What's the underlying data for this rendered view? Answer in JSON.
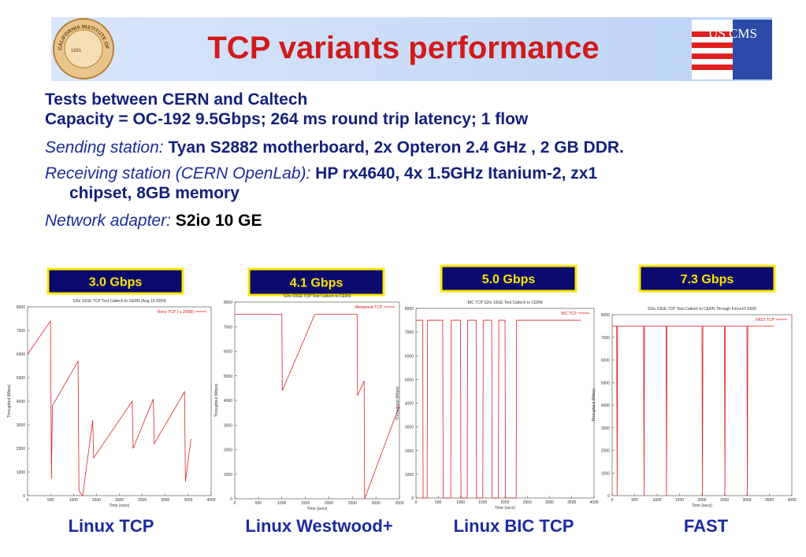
{
  "header": {
    "title": "TCP variants performance",
    "left_logo": {
      "text": "CALIFORNIA INSTITUTE OF TECHNOLOGY",
      "year": "1891"
    },
    "right_logo": "US CMS"
  },
  "text": {
    "line1": "Tests between CERN and Caltech",
    "line2": "Capacity = OC-192 9.5Gbps; 264 ms round trip latency; 1 flow",
    "sending": {
      "label": "Sending station:",
      "value": "Tyan S2882 motherboard,  2x Opteron 2.4 GHz , 2 GB DDR."
    },
    "receiving": {
      "label": "Receiving station (CERN OpenLab):",
      "value": "HP rx4640, 4x 1.5GHz Itanium-2, zx1",
      "value_cont": "chipset, 8GB memory"
    },
    "adapter": {
      "label": "Network adapter:",
      "value": "S2io 10 GE"
    }
  },
  "badges": [
    "3.0 Gbps",
    "4.1 Gbps",
    "5.0 Gbps",
    "7.3 Gbps"
  ],
  "captions": [
    "Linux TCP",
    "Linux Westwood+",
    "Linux BIC TCP",
    "FAST"
  ],
  "chart_data": [
    {
      "type": "line",
      "title": "S2io 10GE TCP Test Caltech to CERN (Aug 19 2004)",
      "xlabel": "Time (secs)",
      "ylabel": "Throughput (Mbps)",
      "x": [
        0,
        500,
        520,
        540,
        1100,
        1120,
        1200,
        1420,
        1440,
        2280,
        2300,
        2740,
        2760,
        3420,
        3440,
        3560
      ],
      "series": [
        {
          "name": "Reno TCP (-u 256M)",
          "color": "#e02020",
          "values": [
            6000,
            7400,
            700,
            3800,
            5700,
            200,
            0,
            3200,
            1600,
            4000,
            2000,
            4100,
            2200,
            4400,
            600,
            2400
          ]
        }
      ],
      "xlim": [
        0,
        4000
      ],
      "xticks": [
        0,
        500,
        1000,
        1500,
        2000,
        2500,
        3000,
        3500,
        4000
      ],
      "ylim": [
        0,
        8000
      ],
      "yticks": [
        0,
        1000,
        2000,
        3000,
        4000,
        5000,
        6000,
        7000,
        8000
      ]
    },
    {
      "type": "line",
      "title": "S2io 10GE TCP Test Caltech to CERN",
      "xlabel": "Time (secs)",
      "ylabel": "Throughput (Mbps)",
      "x": [
        0,
        1000,
        1010,
        1700,
        2600,
        2610,
        2750,
        2760,
        3500
      ],
      "series": [
        {
          "name": "Westwood TCP",
          "color": "#e02020",
          "values": [
            7500,
            7500,
            4400,
            7500,
            7500,
            4200,
            4800,
            0,
            3800
          ]
        }
      ],
      "xlim": [
        0,
        3500
      ],
      "xticks": [
        0,
        500,
        1000,
        1500,
        2000,
        2500,
        3000,
        3500
      ],
      "ylim": [
        0,
        8000
      ],
      "yticks": [
        0,
        1000,
        2000,
        3000,
        4000,
        5000,
        6000,
        7000,
        8000
      ]
    },
    {
      "type": "line",
      "title": "BIC TCP S2io 10GE Test Caltech to CERN",
      "xlabel": "Time (secs)",
      "ylabel": "Throughput (Mbps)",
      "x": [
        0,
        150,
        160,
        250,
        260,
        600,
        610,
        780,
        790,
        1000,
        1010,
        1150,
        1160,
        1350,
        1360,
        1500,
        1510,
        1700,
        1710,
        1850,
        1860,
        2000,
        2010,
        2250,
        2260,
        3700
      ],
      "series": [
        {
          "name": "BIC TCP",
          "color": "#e02020",
          "values": [
            7500,
            7500,
            0,
            0,
            7500,
            7500,
            0,
            0,
            7500,
            7500,
            0,
            0,
            7500,
            7500,
            0,
            0,
            7500,
            7500,
            0,
            0,
            7500,
            7500,
            0,
            0,
            7500,
            7500
          ]
        }
      ],
      "xlim": [
        0,
        4000
      ],
      "xticks": [
        0,
        500,
        1000,
        1500,
        2000,
        2500,
        3000,
        3500,
        4000
      ],
      "ylim": [
        0,
        8000
      ],
      "yticks": [
        0,
        1000,
        2000,
        3000,
        4000,
        5000,
        6000,
        7000,
        8000
      ]
    },
    {
      "type": "line",
      "title": "S2io 10GE TCP Test Caltech to CERN Through Force10 E600",
      "xlabel": "Time (secs)",
      "ylabel": "Throughput (Mbps)",
      "x": [
        0,
        100,
        110,
        120,
        700,
        710,
        720,
        1200,
        1210,
        1220,
        2000,
        2010,
        2020,
        2500,
        2510,
        2520,
        3000,
        3010,
        3020,
        3600
      ],
      "series": [
        {
          "name": "FAST TCP",
          "color": "#e02020",
          "values": [
            7500,
            7500,
            0,
            7500,
            7500,
            0,
            7500,
            7500,
            0,
            7500,
            7500,
            0,
            7500,
            7500,
            0,
            7500,
            7500,
            0,
            7500,
            7500
          ]
        }
      ],
      "xlim": [
        0,
        4000
      ],
      "xticks": [
        0,
        500,
        1000,
        1500,
        2000,
        2500,
        3000,
        3500,
        4000
      ],
      "ylim": [
        0,
        8000
      ],
      "yticks": [
        0,
        1000,
        2000,
        3000,
        4000,
        5000,
        6000,
        7000,
        8000
      ]
    }
  ]
}
